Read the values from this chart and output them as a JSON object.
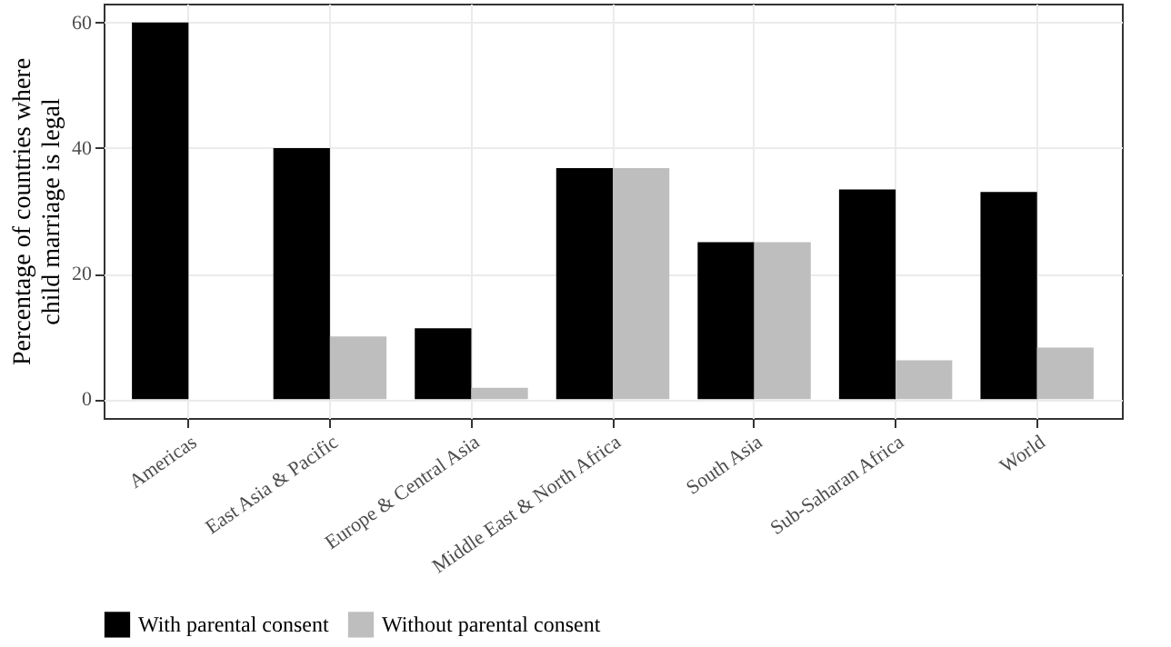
{
  "chart_data": {
    "type": "bar",
    "ylabel": "Percentage of countries where\nchild marriage is legal",
    "categories": [
      "Americas",
      "East Asia & Pacific",
      "Europe & Central Asia",
      "Middle East & North Africa",
      "South Asia",
      "Sub-Saharan Africa",
      "World"
    ],
    "series": [
      {
        "name": "With parental consent",
        "color": "#000000",
        "values": [
          60,
          40,
          11.3,
          36.8,
          25,
          33.4,
          33
        ]
      },
      {
        "name": "Without parental consent",
        "color": "#bebebe",
        "values": [
          0,
          10,
          1.8,
          36.8,
          25,
          6.2,
          8.2
        ]
      }
    ],
    "ylim": [
      -3,
      63
    ],
    "yticks": [
      0,
      20,
      40,
      60
    ],
    "grid": true,
    "legend": "bottom"
  }
}
